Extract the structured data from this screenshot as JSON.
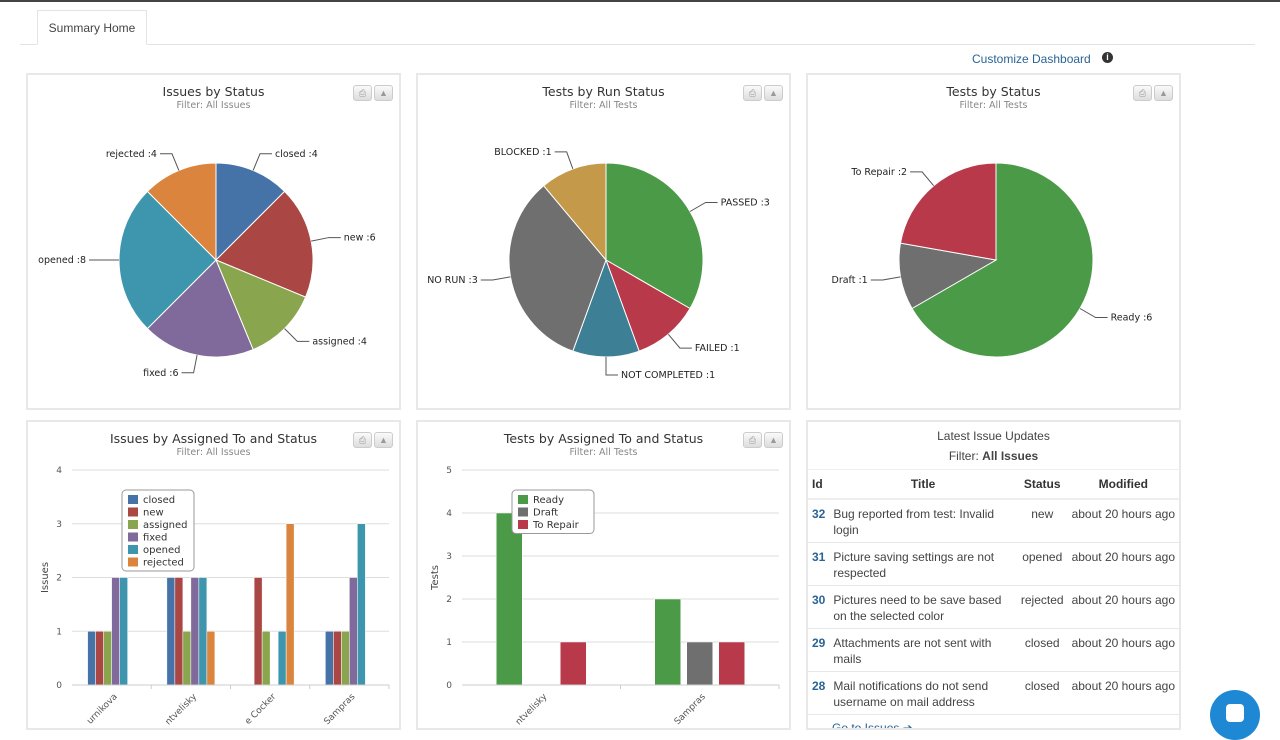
{
  "tabs": [
    {
      "label": "Summary Home",
      "active": true
    }
  ],
  "customize_link": "Customize Dashboard",
  "info_icon": "i",
  "panel_buttons": {
    "print_icon": "print-icon",
    "download_icon": "download-icon"
  },
  "chart_data": [
    {
      "type": "pie",
      "title": "Issues by Status",
      "subtitle": "Filter: All Issues",
      "slices": [
        {
          "label": "closed",
          "value": 4,
          "color": "#4572a7"
        },
        {
          "label": "new",
          "value": 6,
          "color": "#aa4643"
        },
        {
          "label": "assigned",
          "value": 4,
          "color": "#89a54e"
        },
        {
          "label": "fixed",
          "value": 6,
          "color": "#80699b"
        },
        {
          "label": "opened",
          "value": 8,
          "color": "#3d96ae"
        },
        {
          "label": "rejected",
          "value": 4,
          "color": "#db843d"
        }
      ]
    },
    {
      "type": "pie",
      "title": "Tests by Run Status",
      "subtitle": "Filter: All Tests",
      "slices": [
        {
          "label": "PASSED",
          "value": 3,
          "color": "#4a9a48"
        },
        {
          "label": "FAILED",
          "value": 1,
          "color": "#b8394a"
        },
        {
          "label": "NOT COMPLETED",
          "value": 1,
          "color": "#3d7f94"
        },
        {
          "label": "NO RUN",
          "value": 3,
          "color": "#6f6f6f"
        },
        {
          "label": "BLOCKED",
          "value": 1,
          "color": "#c49a4a"
        }
      ]
    },
    {
      "type": "pie",
      "title": "Tests by Status",
      "subtitle": "Filter: All Tests",
      "slices": [
        {
          "label": "Ready",
          "value": 6,
          "color": "#4a9a48"
        },
        {
          "label": "Draft",
          "value": 1,
          "color": "#6f6f6f"
        },
        {
          "label": "To Repair",
          "value": 2,
          "color": "#b8394a"
        }
      ]
    },
    {
      "type": "bar",
      "title": "Issues by Assigned To and Status",
      "subtitle": "Filter: All Issues",
      "ylabel": "Issues",
      "ylim": [
        0,
        4
      ],
      "yticks": [
        0,
        1,
        2,
        3,
        4
      ],
      "grid": true,
      "legend": "top-left",
      "categories": [
        "urnikova",
        "ntvelisky",
        "e Cocker",
        "Sampras"
      ],
      "series": [
        {
          "name": "closed",
          "color": "#4572a7",
          "values": [
            1,
            2,
            0,
            1
          ]
        },
        {
          "name": "new",
          "color": "#aa4643",
          "values": [
            1,
            2,
            2,
            1
          ]
        },
        {
          "name": "assigned",
          "color": "#89a54e",
          "values": [
            1,
            1,
            1,
            1
          ]
        },
        {
          "name": "fixed",
          "color": "#80699b",
          "values": [
            2,
            2,
            0,
            2
          ]
        },
        {
          "name": "opened",
          "color": "#3d96ae",
          "values": [
            2,
            2,
            1,
            3
          ]
        },
        {
          "name": "rejected",
          "color": "#db843d",
          "values": [
            0,
            1,
            3,
            0
          ]
        }
      ]
    },
    {
      "type": "bar",
      "title": "Tests by Assigned To and Status",
      "subtitle": "Filter: All Tests",
      "ylabel": "Tests",
      "ylim": [
        0,
        5
      ],
      "yticks": [
        0,
        1,
        2,
        3,
        4,
        5
      ],
      "grid": true,
      "legend": "top-left",
      "categories": [
        "ntvelisky",
        "Sampras"
      ],
      "series": [
        {
          "name": "Ready",
          "color": "#4a9a48",
          "values": [
            4,
            2
          ]
        },
        {
          "name": "Draft",
          "color": "#6f6f6f",
          "values": [
            0,
            1
          ]
        },
        {
          "name": "To Repair",
          "color": "#b8394a",
          "values": [
            1,
            1
          ]
        }
      ]
    }
  ],
  "latest": {
    "title": "Latest Issue Updates",
    "filter_label": "Filter:",
    "filter_value": "All Issues",
    "columns": [
      "Id",
      "Title",
      "Status",
      "Modified"
    ],
    "rows": [
      {
        "id": "32",
        "title": "Bug reported from test: Invalid login",
        "status": "new",
        "modified": "about 20 hours ago"
      },
      {
        "id": "31",
        "title": "Picture saving settings are not respected",
        "status": "opened",
        "modified": "about 20 hours ago"
      },
      {
        "id": "30",
        "title": "Pictures need to be save based on the selected color",
        "status": "rejected",
        "modified": "about 20 hours ago"
      },
      {
        "id": "29",
        "title": "Attachments are not sent with mails",
        "status": "closed",
        "modified": "about 20 hours ago"
      },
      {
        "id": "28",
        "title": "Mail notifications do not send username on mail address",
        "status": "closed",
        "modified": "about 20 hours ago"
      }
    ],
    "goto": "Go to Issues ➔"
  }
}
